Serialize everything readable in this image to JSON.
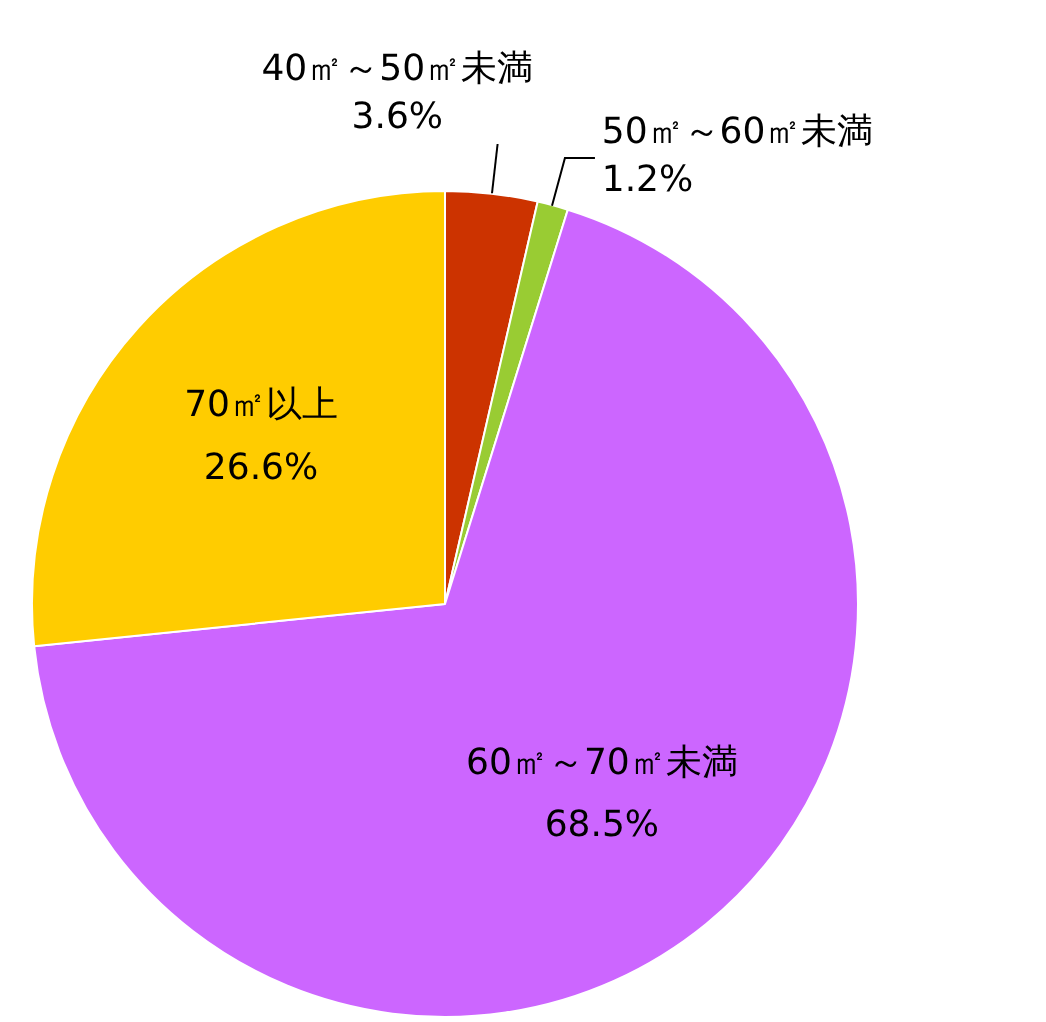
{
  "chart_data": {
    "type": "pie",
    "categories": [
      "40㎡～50㎡未満",
      "50㎡～60㎡未満",
      "60㎡～70㎡未満",
      "70㎡以上"
    ],
    "values": [
      3.6,
      1.2,
      68.5,
      26.6
    ],
    "colors": [
      "#cc3300",
      "#99cc33",
      "#cc66ff",
      "#ffcc00"
    ],
    "value_labels": [
      "3.6%",
      "1.2%",
      "68.5%",
      "26.6%"
    ]
  }
}
